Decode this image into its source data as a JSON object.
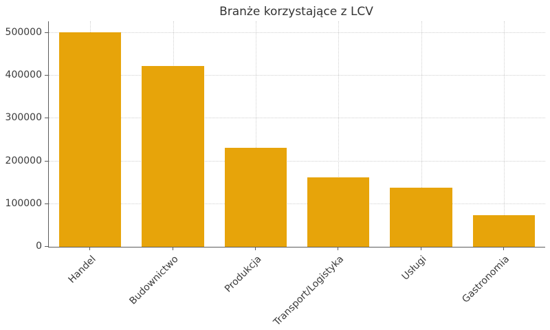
{
  "chart_data": {
    "type": "bar",
    "title": "Branże korzystające z LCV",
    "categories": [
      "Handel",
      "Budownictwo",
      "Produkcja",
      "Transport/Logistyka",
      "Usługi",
      "Gastronomia"
    ],
    "values": [
      502000,
      423000,
      232000,
      163000,
      138000,
      74000
    ],
    "xlabel": "",
    "ylabel": "",
    "yticks": [
      0,
      100000,
      200000,
      300000,
      400000,
      500000
    ],
    "ylim": [
      0,
      527000
    ],
    "grid": "dotted, horizontal and vertical, light gray, behind bars",
    "legend": "none",
    "bar_color": "#E7A40A",
    "bar_width_fraction": 0.75,
    "text_color": "#3a3a3a",
    "spine_color": "#5a5a5a",
    "gridline_color": "#cfcfcf",
    "background_color": "#ffffff",
    "xtick_label_rotation_deg": 45
  }
}
